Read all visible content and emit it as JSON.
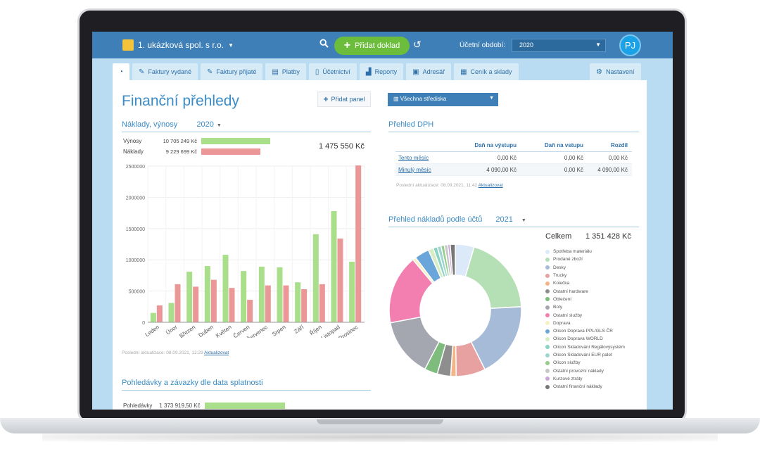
{
  "topbar": {
    "company": "1. ukázková spol. s r.o.",
    "add_doc": "Přidat doklad",
    "period_label": "Účetní období:",
    "period_value": "2020",
    "avatar": "PJ"
  },
  "tabs": [
    {
      "label": "",
      "icon": "dashboard-icon"
    },
    {
      "label": "Faktury vydané",
      "icon": "invoice-out-icon"
    },
    {
      "label": "Faktury přijaté",
      "icon": "invoice-in-icon"
    },
    {
      "label": "Platby",
      "icon": "bank-icon"
    },
    {
      "label": "Účetnictví",
      "icon": "ledger-icon"
    },
    {
      "label": "Reporty",
      "icon": "report-icon"
    },
    {
      "label": "Adresář",
      "icon": "address-book-icon"
    },
    {
      "label": "Ceník a sklady",
      "icon": "warehouse-icon"
    }
  ],
  "settings_label": "Nastavení",
  "page": {
    "title": "Finanční přehledy",
    "add_panel": "Přidat panel",
    "centers": "Všechna střediska"
  },
  "costs_panel": {
    "title": "Náklady, výnosy",
    "year": "2020",
    "revenue_label": "Výnosy",
    "revenue_amount": "10 705 249 Kč",
    "cost_label": "Náklady",
    "cost_amount": "9 229 699 Kč",
    "difference": "1 475 550 Kč",
    "update_text": "Poslední aktualizace: 08.09.2021, 12:29",
    "update_link": "Aktualizovat"
  },
  "chart_data": {
    "type": "bar",
    "categories": [
      "Leden",
      "Únor",
      "Březen",
      "Duben",
      "Květen",
      "Červen",
      "Červenec",
      "Srpen",
      "Září",
      "Říjen",
      "Listopad",
      "Prosinec"
    ],
    "series": [
      {
        "name": "Výnosy",
        "color": "#a9df8a",
        "values": [
          150000,
          310000,
          810000,
          900000,
          1080000,
          820000,
          890000,
          880000,
          640000,
          1410000,
          1780000,
          970000
        ]
      },
      {
        "name": "Náklady",
        "color": "#ec9797",
        "values": [
          270000,
          610000,
          570000,
          680000,
          550000,
          360000,
          590000,
          590000,
          530000,
          610000,
          1340000,
          2510000
        ]
      }
    ],
    "yticks": [
      "0",
      "500000",
      "1000000",
      "1500000",
      "2000000",
      "2500000"
    ],
    "ylim": [
      0,
      2500000
    ]
  },
  "dph_panel": {
    "title": "Přehled DPH",
    "headers": [
      "",
      "Daň na výstupu",
      "Daň na vstupu",
      "Rozdíl"
    ],
    "rows": [
      [
        "Tento měsíc",
        "0,00 Kč",
        "0,00 Kč",
        "0,00 Kč"
      ],
      [
        "Minulý měsíc",
        "4 090,00 Kč",
        "0,00 Kč",
        "4 090,00 Kč"
      ]
    ],
    "update_text": "Poslední aktualizace: 08.09.2021, 11:42",
    "update_link": "Aktualizovat"
  },
  "accounts_panel": {
    "title": "Přehled nákladů podle účtů",
    "year": "2021",
    "total_label": "Celkem",
    "total_value": "1 351 428 Kč",
    "items": [
      {
        "label": "Spotřeba materiálu",
        "color": "#dbe9f8",
        "value": 4.5
      },
      {
        "label": "Prodané zboží",
        "color": "#b5dfb5",
        "value": 19
      },
      {
        "label": "Desky",
        "color": "#a5bbd8",
        "value": 18
      },
      {
        "label": "Trucky",
        "color": "#e7a1a1",
        "value": 7
      },
      {
        "label": "Kolečka",
        "color": "#f5b486",
        "value": 1.3
      },
      {
        "label": "Ostatní hardware",
        "color": "#8e8e8e",
        "value": 3.2
      },
      {
        "label": "Oblečení",
        "color": "#7dbc7d",
        "value": 3.1
      },
      {
        "label": "Boty",
        "color": "#a4a6b0",
        "value": 14
      },
      {
        "label": "Ostatní služby",
        "color": "#f37fb1",
        "value": 16.5
      },
      {
        "label": "Doprava",
        "color": "#f6f1c4",
        "value": 0.8
      },
      {
        "label": "Olicon Doprava PPL/GLS ČR",
        "color": "#6aa6da",
        "value": 3.5
      },
      {
        "label": "Olicon Doprava WORLD",
        "color": "#d6ecc3",
        "value": 1.2
      },
      {
        "label": "Olicon Skladování Regálovýsystém",
        "color": "#8ad2c4",
        "value": 1.0
      },
      {
        "label": "Olicon Skladování EUR palet",
        "color": "#9fd6d0",
        "value": 0.9
      },
      {
        "label": "Olicon služby",
        "color": "#96cc8c",
        "value": 0.8
      },
      {
        "label": "Ostatní provozní náklady",
        "color": "#c6c6c6",
        "value": 0.8
      },
      {
        "label": "Kurzové ztráty",
        "color": "#cba8d8",
        "value": 0.6
      },
      {
        "label": "Ostatní finanční náklady",
        "color": "#777777",
        "value": 1.2
      }
    ]
  },
  "receivables_panel": {
    "title": "Pohledávky a závazky dle data splatnosti",
    "label": "Pohledávky",
    "amount": "1 373 919,50 Kč"
  }
}
